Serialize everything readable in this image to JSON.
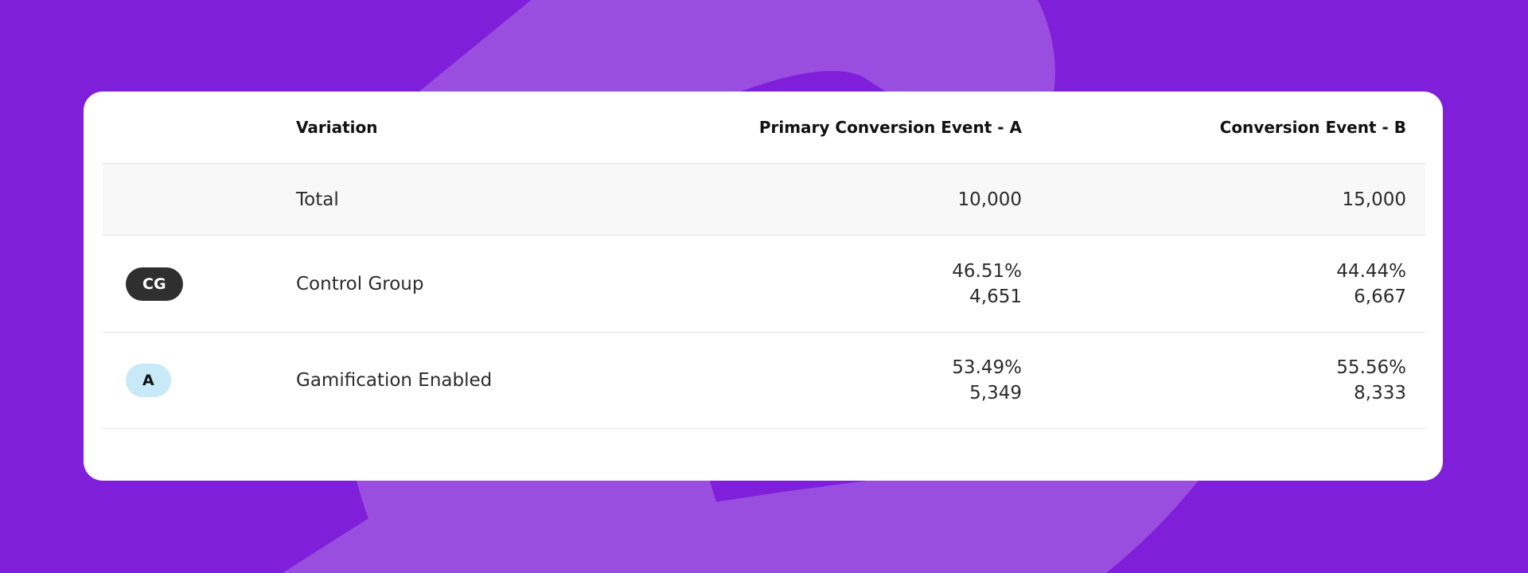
{
  "table": {
    "headers": [
      "Variation",
      "Primary Conversion Event - A",
      "Conversion Event - B"
    ],
    "rows": [
      {
        "name": "Total",
        "a": [
          "10,000"
        ],
        "b": [
          "15,000"
        ]
      },
      {
        "badge": "CG",
        "name": "Control Group",
        "a": [
          "46.51%",
          "4,651"
        ],
        "b": [
          "44.44%",
          "6,667"
        ]
      },
      {
        "badge": "A",
        "name": "Gamification Enabled",
        "a": [
          "53.49%",
          "5,349"
        ],
        "b": [
          "55.56%",
          "8,333"
        ]
      }
    ]
  }
}
